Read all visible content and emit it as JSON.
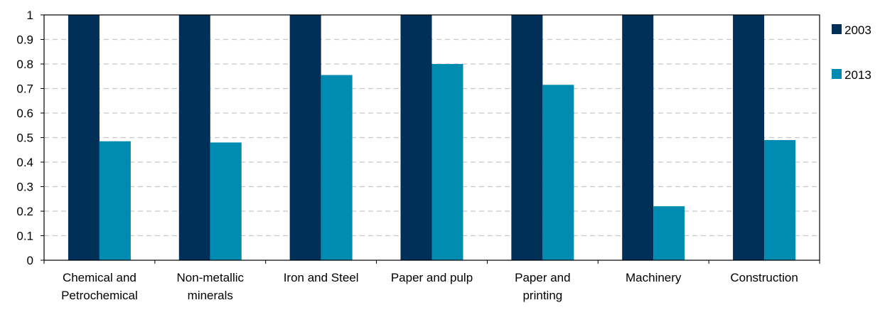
{
  "chart_data": {
    "type": "bar",
    "title": "",
    "xlabel": "",
    "ylabel": "",
    "ylim": [
      0,
      1
    ],
    "yticks": [
      0,
      0.1,
      0.2,
      0.3,
      0.4,
      0.5,
      0.6,
      0.7,
      0.8,
      0.9,
      1
    ],
    "grid": true,
    "legend_position": "right",
    "categories": [
      [
        "Chemical and",
        "Petrochemical"
      ],
      [
        "Non-metallic",
        "minerals"
      ],
      [
        "Iron and Steel"
      ],
      [
        "Paper and pulp"
      ],
      [
        "Paper and",
        "printing"
      ],
      [
        "Machinery"
      ],
      [
        "Construction"
      ]
    ],
    "series": [
      {
        "name": "2003",
        "color": "#003057",
        "values": [
          1,
          1,
          1,
          1,
          1,
          1,
          1
        ]
      },
      {
        "name": "2013",
        "color": "#008bb0",
        "values": [
          0.485,
          0.48,
          0.755,
          0.8,
          0.715,
          0.22,
          0.49
        ]
      }
    ]
  }
}
